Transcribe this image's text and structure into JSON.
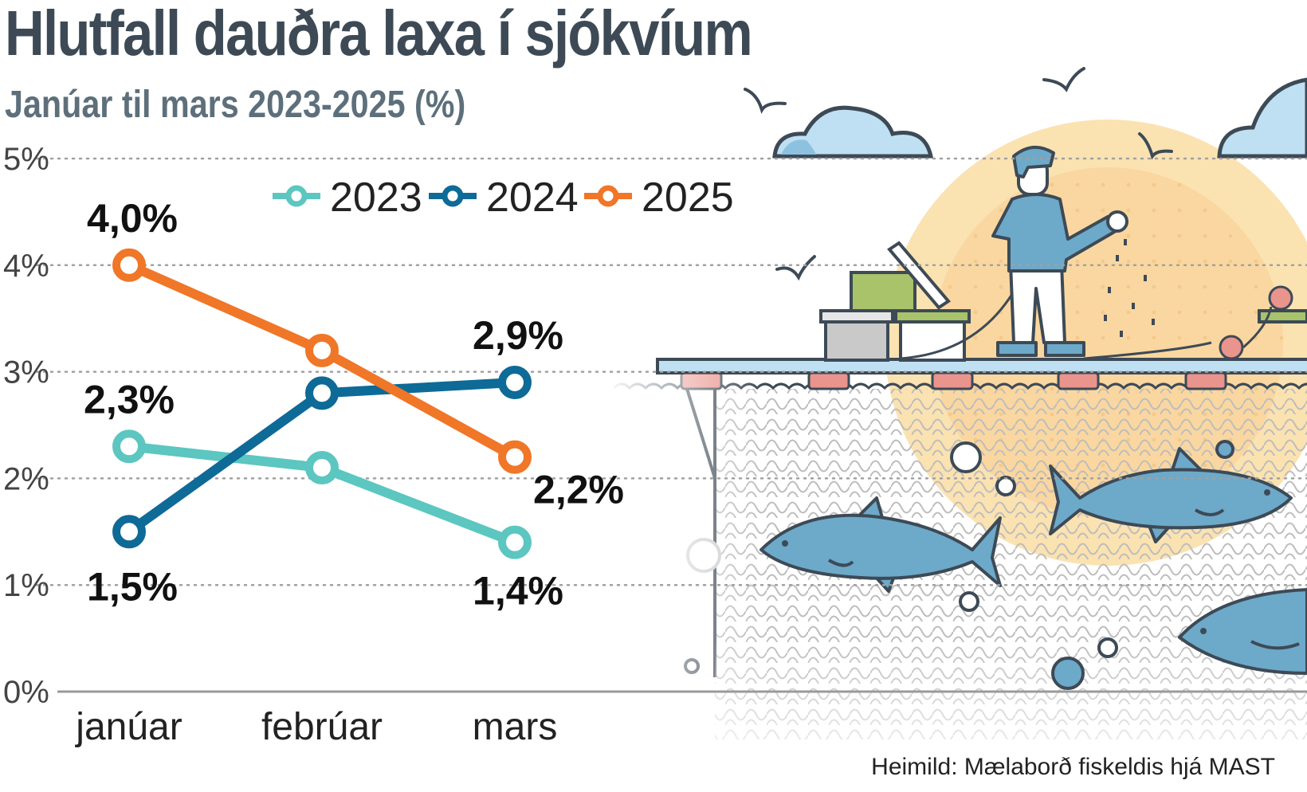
{
  "header": {
    "title": "Hlutfall dauðra laxa í sjókvíum",
    "subtitle": "Janúar til mars 2023-2025 (%)"
  },
  "source": "Heimild: Mælaborð fiskeldis hjá MAST",
  "colors": {
    "2023": "#5cc6c0",
    "2024": "#0e6a96",
    "2025": "#f07628",
    "title": "#3d4a56",
    "subtitle": "#5d6f7b",
    "fish": "#6da9c9",
    "sun": "#fbe2b1",
    "net": "#bdbdbd",
    "sky_cloud": "#bfe0f2"
  },
  "illustration": {
    "description_icons": [
      "fish-farmer-icon",
      "salmon-icon",
      "net-pen-icon",
      "cloud-icon",
      "bird-icon",
      "sun-icon",
      "bubble-icon"
    ]
  },
  "chart_data": {
    "type": "line",
    "title": "Hlutfall dauðra laxa í sjókvíum",
    "subtitle": "Janúar til mars 2023-2025 (%)",
    "categories": [
      "janúar",
      "febrúar",
      "mars"
    ],
    "yticks": [
      "0%",
      "1%",
      "2%",
      "3%",
      "4%",
      "5%"
    ],
    "ylim": [
      0,
      5
    ],
    "grid": true,
    "legend": "top",
    "series": [
      {
        "name": "2023",
        "values": [
          2.3,
          2.1,
          1.4
        ],
        "labels": [
          "2,3%",
          null,
          "1,4%"
        ]
      },
      {
        "name": "2024",
        "values": [
          1.5,
          2.8,
          2.9
        ],
        "labels": [
          "1,5%",
          null,
          "2,9%"
        ]
      },
      {
        "name": "2025",
        "values": [
          4.0,
          3.2,
          2.2
        ],
        "labels": [
          "4,0%",
          null,
          "2,2%"
        ]
      }
    ]
  }
}
